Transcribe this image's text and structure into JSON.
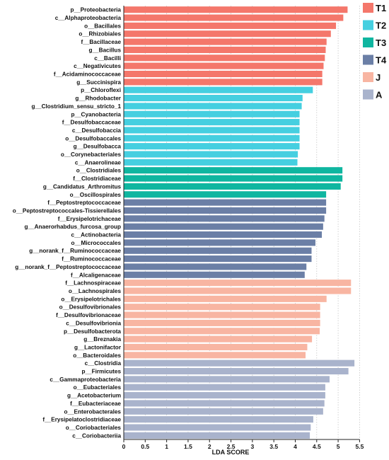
{
  "chart_data": {
    "type": "bar",
    "orientation": "horizontal",
    "xlabel": "LDA SCORE",
    "xlim": [
      0,
      5.5
    ],
    "xticks": [
      "0",
      "0.5",
      "1",
      "1.5",
      "2",
      "2.5",
      "3",
      "3.5",
      "4",
      "4.5",
      "5",
      "5.5"
    ],
    "grid": "vertical dotted",
    "legend_position": "right",
    "groups": [
      {
        "name": "T1",
        "color": "#f4776b"
      },
      {
        "name": "T2",
        "color": "#45cfe0"
      },
      {
        "name": "T3",
        "color": "#0fb6a0"
      },
      {
        "name": "T4",
        "color": "#6b7fa6"
      },
      {
        "name": "J",
        "color": "#f8b5a2"
      },
      {
        "name": "A",
        "color": "#a9b3cc"
      }
    ],
    "bars": [
      {
        "label": "p__Proteobacteria",
        "value": 5.22,
        "group": "T1"
      },
      {
        "label": "c__Alphaproteobacteria",
        "value": 5.12,
        "group": "T1"
      },
      {
        "label": "o__Bacillales",
        "value": 4.95,
        "group": "T1"
      },
      {
        "label": "o__Rhizobiales",
        "value": 4.83,
        "group": "T1"
      },
      {
        "label": "f__Bacillaceae",
        "value": 4.73,
        "group": "T1"
      },
      {
        "label": "g__Bacillus",
        "value": 4.71,
        "group": "T1"
      },
      {
        "label": "c__Bacilli",
        "value": 4.69,
        "group": "T1"
      },
      {
        "label": "c__Negativicutes",
        "value": 4.66,
        "group": "T1"
      },
      {
        "label": "f__Acidaminococcaceae",
        "value": 4.63,
        "group": "T1"
      },
      {
        "label": "g__Succinispira",
        "value": 4.63,
        "group": "T1"
      },
      {
        "label": "p__Chloroflexi",
        "value": 4.41,
        "group": "T2"
      },
      {
        "label": "g__Rhodobacter",
        "value": 4.17,
        "group": "T2"
      },
      {
        "label": "g__Clostridium_sensu_stricto_1",
        "value": 4.15,
        "group": "T2"
      },
      {
        "label": "p__Cyanobacteria",
        "value": 4.1,
        "group": "T2"
      },
      {
        "label": "f__Desulfobaccaceae",
        "value": 4.1,
        "group": "T2"
      },
      {
        "label": "c__Desulfobaccia",
        "value": 4.1,
        "group": "T2"
      },
      {
        "label": "o__Desulfobaccales",
        "value": 4.1,
        "group": "T2"
      },
      {
        "label": "g__Desulfobacca",
        "value": 4.1,
        "group": "T2"
      },
      {
        "label": "o__Corynebacteriales",
        "value": 4.06,
        "group": "T2"
      },
      {
        "label": "c__Anaerolineae",
        "value": 4.05,
        "group": "T2"
      },
      {
        "label": "o__Clostridiales",
        "value": 5.1,
        "group": "T3"
      },
      {
        "label": "f__Clostridiaceae",
        "value": 5.1,
        "group": "T3"
      },
      {
        "label": "g__Candidatus_Arthromitus",
        "value": 5.06,
        "group": "T3"
      },
      {
        "label": "o__Oscillospirales",
        "value": 4.72,
        "group": "T3"
      },
      {
        "label": "f__Peptostreptococcaceae",
        "value": 4.72,
        "group": "T4"
      },
      {
        "label": "o__Peptostreptococcales-Tissierellales",
        "value": 4.72,
        "group": "T4"
      },
      {
        "label": "f__Erysipelotrichaceae",
        "value": 4.68,
        "group": "T4"
      },
      {
        "label": "g__Anaerorhabdus_furcosa_group",
        "value": 4.65,
        "group": "T4"
      },
      {
        "label": "c__Actinobacteria",
        "value": 4.62,
        "group": "T4"
      },
      {
        "label": "o__Micrococcales",
        "value": 4.47,
        "group": "T4"
      },
      {
        "label": "g__norank_f__Ruminococcaceae",
        "value": 4.38,
        "group": "T4"
      },
      {
        "label": "f__Ruminococcaceae",
        "value": 4.38,
        "group": "T4"
      },
      {
        "label": "g__norank_f__Peptostreptococcaceae",
        "value": 4.26,
        "group": "T4"
      },
      {
        "label": "f__Alcaligenaceae",
        "value": 4.22,
        "group": "T4"
      },
      {
        "label": "f__Lachnospiraceae",
        "value": 5.3,
        "group": "J"
      },
      {
        "label": "o__Lachnospirales",
        "value": 5.3,
        "group": "J"
      },
      {
        "label": "o__Erysipelotrichales",
        "value": 4.73,
        "group": "J"
      },
      {
        "label": "o__Desulfovibrionales",
        "value": 4.58,
        "group": "J"
      },
      {
        "label": "f__Desulfovibrionaceae",
        "value": 4.58,
        "group": "J"
      },
      {
        "label": "c__Desulfovibrionia",
        "value": 4.58,
        "group": "J"
      },
      {
        "label": "p__Desulfobacterota",
        "value": 4.57,
        "group": "J"
      },
      {
        "label": "g__Breznakia",
        "value": 4.39,
        "group": "J"
      },
      {
        "label": "g__Lactonifactor",
        "value": 4.28,
        "group": "J"
      },
      {
        "label": "o__Bacteroidales",
        "value": 4.24,
        "group": "J"
      },
      {
        "label": "c__Clostridia",
        "value": 5.38,
        "group": "A"
      },
      {
        "label": "p__Firmicutes",
        "value": 5.24,
        "group": "A"
      },
      {
        "label": "c__Gammaproteobacteria",
        "value": 4.8,
        "group": "A"
      },
      {
        "label": "o__Eubacteriales",
        "value": 4.7,
        "group": "A"
      },
      {
        "label": "g__Acetobacterium",
        "value": 4.7,
        "group": "A"
      },
      {
        "label": "f__Eubacteriaceae",
        "value": 4.68,
        "group": "A"
      },
      {
        "label": "o__Enterobacterales",
        "value": 4.65,
        "group": "A"
      },
      {
        "label": "f__Erysipelatoclostridiaceae",
        "value": 4.42,
        "group": "A"
      },
      {
        "label": "o__Coriobacteriales",
        "value": 4.36,
        "group": "A"
      },
      {
        "label": "c__Coriobacteriia",
        "value": 4.34,
        "group": "A"
      }
    ]
  }
}
